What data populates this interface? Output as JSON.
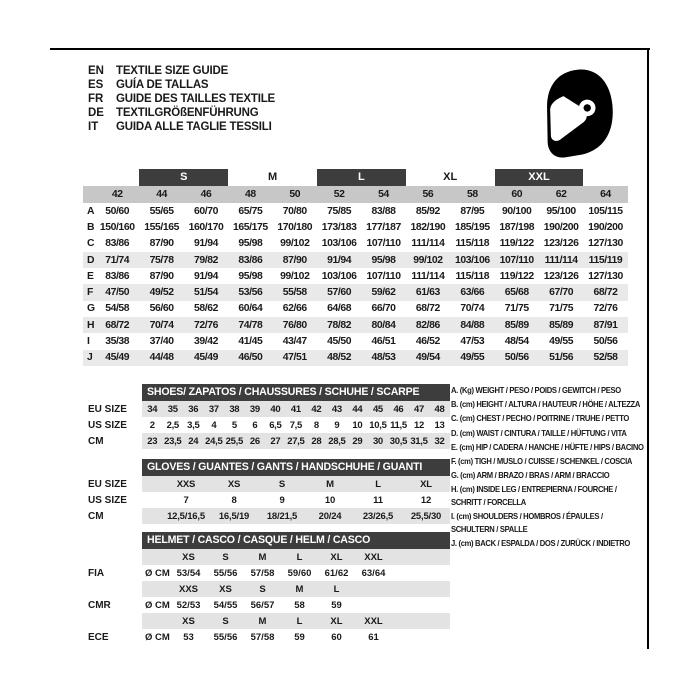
{
  "header": {
    "languages": [
      {
        "code": "EN",
        "title": "TEXTILE SIZE GUIDE"
      },
      {
        "code": "ES",
        "title": "GUÍA DE TALLAS"
      },
      {
        "code": "FR",
        "title": "GUIDE DES TAILLES TEXTILE"
      },
      {
        "code": "DE",
        "title": "TEXTILGRÖßENFÜHRUNG"
      },
      {
        "code": "IT",
        "title": "GUIDA ALLE TAGLIE TESSILI"
      }
    ],
    "icon": "racing-helmet-icon"
  },
  "colors": {
    "dark_bar": "#3d3d3d",
    "size_header_gray": "#c7c7c7",
    "band_gray": "#e3e3e3",
    "alt_row_gray": "#e9e9e9",
    "text": "#1a1a1a"
  },
  "garment_table": {
    "size_groups": [
      {
        "label": "S",
        "boxed": true
      },
      {
        "label": "M",
        "boxed": false
      },
      {
        "label": "L",
        "boxed": true
      },
      {
        "label": "XL",
        "boxed": false
      },
      {
        "label": "XXL",
        "boxed": true
      }
    ],
    "sizes": [
      "42",
      "44",
      "46",
      "48",
      "50",
      "52",
      "54",
      "56",
      "58",
      "60",
      "62",
      "64"
    ],
    "rows": [
      {
        "label": "A",
        "shaded": false,
        "values": [
          "50/60",
          "55/65",
          "60/70",
          "65/75",
          "70/80",
          "75/85",
          "83/88",
          "85/92",
          "87/95",
          "90/100",
          "95/100",
          "105/115"
        ]
      },
      {
        "label": "B",
        "shaded": false,
        "values": [
          "150/160",
          "155/165",
          "160/170",
          "165/175",
          "170/180",
          "173/183",
          "177/187",
          "182/190",
          "185/195",
          "187/198",
          "190/200",
          "190/200"
        ]
      },
      {
        "label": "C",
        "shaded": false,
        "values": [
          "83/86",
          "87/90",
          "91/94",
          "95/98",
          "99/102",
          "103/106",
          "107/110",
          "111/114",
          "115/118",
          "119/122",
          "123/126",
          "127/130"
        ]
      },
      {
        "label": "D",
        "shaded": true,
        "values": [
          "71/74",
          "75/78",
          "79/82",
          "83/86",
          "87/90",
          "91/94",
          "95/98",
          "99/102",
          "103/106",
          "107/110",
          "111/114",
          "115/119"
        ]
      },
      {
        "label": "E",
        "shaded": false,
        "values": [
          "83/86",
          "87/90",
          "91/94",
          "95/98",
          "99/102",
          "103/106",
          "107/110",
          "111/114",
          "115/118",
          "119/122",
          "123/126",
          "127/130"
        ]
      },
      {
        "label": "F",
        "shaded": true,
        "values": [
          "47/50",
          "49/52",
          "51/54",
          "53/56",
          "55/58",
          "57/60",
          "59/62",
          "61/63",
          "63/66",
          "65/68",
          "67/70",
          "68/72"
        ]
      },
      {
        "label": "G",
        "shaded": false,
        "values": [
          "54/58",
          "56/60",
          "58/62",
          "60/64",
          "62/66",
          "64/68",
          "66/70",
          "68/72",
          "70/74",
          "71/75",
          "71/75",
          "72/76"
        ]
      },
      {
        "label": "H",
        "shaded": true,
        "values": [
          "68/72",
          "70/74",
          "72/76",
          "74/78",
          "76/80",
          "78/82",
          "80/84",
          "82/86",
          "84/88",
          "85/89",
          "85/89",
          "87/91"
        ]
      },
      {
        "label": "I",
        "shaded": false,
        "values": [
          "35/38",
          "37/40",
          "39/42",
          "41/45",
          "43/47",
          "45/50",
          "46/51",
          "46/52",
          "47/53",
          "48/54",
          "49/55",
          "50/56"
        ]
      },
      {
        "label": "J",
        "shaded": true,
        "values": [
          "45/49",
          "44/48",
          "45/49",
          "46/50",
          "47/51",
          "48/52",
          "48/53",
          "49/54",
          "49/55",
          "50/56",
          "51/56",
          "52/58"
        ]
      }
    ]
  },
  "shoes": {
    "title": "SHOES/ ZAPATOS / CHAUSSURES / SCHUHE / SCARPE",
    "rows": [
      {
        "label": "EU SIZE",
        "shaded": true,
        "values": [
          "34",
          "35",
          "36",
          "37",
          "38",
          "39",
          "40",
          "41",
          "42",
          "43",
          "44",
          "45",
          "46",
          "47",
          "48"
        ]
      },
      {
        "label": "US SIZE",
        "shaded": false,
        "values": [
          "2",
          "2,5",
          "3,5",
          "4",
          "5",
          "6",
          "6,5",
          "7,5",
          "8",
          "9",
          "10",
          "10,5",
          "11,5",
          "12",
          "13"
        ]
      },
      {
        "label": "CM",
        "shaded": true,
        "values": [
          "23",
          "23,5",
          "24",
          "24,5",
          "25,5",
          "26",
          "27",
          "27,5",
          "28",
          "28,5",
          "29",
          "30",
          "30,5",
          "31,5",
          "32"
        ]
      }
    ]
  },
  "gloves": {
    "title": "GLOVES / GUANTES / GANTS / HANDSCHUHE / GUANTI",
    "rows": [
      {
        "label": "EU SIZE",
        "shaded": true,
        "values": [
          "XXS",
          "XS",
          "S",
          "M",
          "L",
          "XL"
        ]
      },
      {
        "label": "US SIZE",
        "shaded": false,
        "values": [
          "7",
          "8",
          "9",
          "10",
          "11",
          "12"
        ]
      },
      {
        "label": "CM",
        "shaded": true,
        "values": [
          "12,5/16,5",
          "16,5/19",
          "18/21,5",
          "20/24",
          "23/26,5",
          "25,5/30"
        ]
      }
    ]
  },
  "helmet": {
    "title": "HELMET / CASCO / CASQUE / HELM / CASCO",
    "blocks": [
      {
        "label": "FIA",
        "diameter_label": "Ø CM",
        "sizes": [
          "XS",
          "S",
          "M",
          "L",
          "XL",
          "XXL"
        ],
        "values": [
          "53/54",
          "55/56",
          "57/58",
          "59/60",
          "61/62",
          "63/64"
        ]
      },
      {
        "label": "CMR",
        "diameter_label": "Ø CM",
        "sizes": [
          "XXS",
          "XS",
          "S",
          "M",
          "L",
          ""
        ],
        "values": [
          "52/53",
          "54/55",
          "56/57",
          "58",
          "59",
          ""
        ]
      },
      {
        "label": "ECE",
        "diameter_label": "Ø CM",
        "sizes": [
          "XS",
          "S",
          "M",
          "L",
          "XL",
          "XXL"
        ],
        "values": [
          "53",
          "55/56",
          "57/58",
          "59",
          "60",
          "61"
        ]
      }
    ]
  },
  "measurement_legend": [
    {
      "lines": [
        "A. (Kg) WEIGHT / PESO / POIDS / GEWITCH / PESO"
      ]
    },
    {
      "lines": [
        "B. (cm) HEIGHT / ALTURA / HAUTEUR / HÖHE / ALTEZZA"
      ]
    },
    {
      "lines": [
        "C. (cm) CHEST / PECHO / POITRINE / TRUHE / PETTO"
      ]
    },
    {
      "lines": [
        "D. (cm) WAIST / CINTURA / TAILLE / HÜFTUNG / VITA"
      ]
    },
    {
      "lines": [
        "E. (cm) HIP / CADERA / HANCHE / HÜFTE / HIPS / BACINO"
      ]
    },
    {
      "lines": [
        "F. (cm) TIGH / MUSLO / CUISSE / SCHENKEL / COSCIA"
      ]
    },
    {
      "lines": [
        "G. (cm) ARM / BRAZO / BRAS / ARM / BRACCIO"
      ]
    },
    {
      "lines": [
        "H. (cm) INSIDE LEG / ENTREPIERNA / FOURCHE /",
        "SCHRITT / FORCELLA"
      ]
    },
    {
      "lines": [
        "I. (cm) SHOULDERS / HOMBROS / ÉPAULES /",
        "SCHULTERN / SPALLE"
      ]
    },
    {
      "lines": [
        "J. (cm) BACK / ESPALDA / DOS / ZURÜCK / INDIETRO"
      ]
    }
  ]
}
